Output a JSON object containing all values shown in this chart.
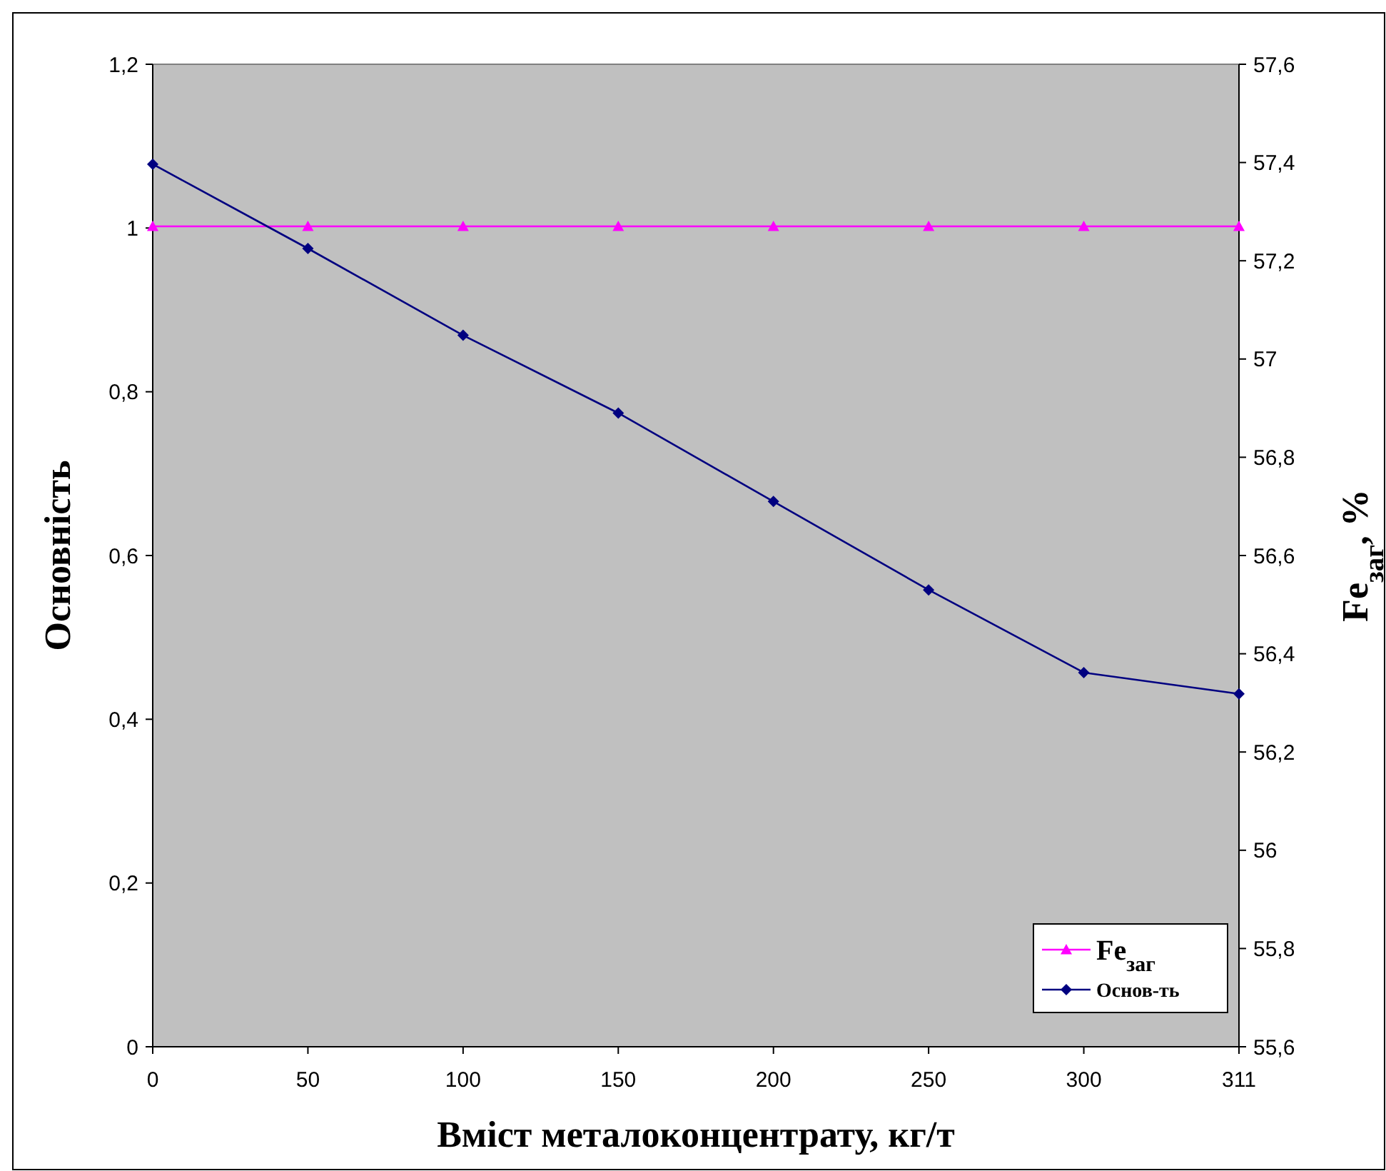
{
  "chart_data": {
    "type": "line",
    "xlabel": "Вміст металоконцентрату, кг/т",
    "ylabel": "Основність",
    "y2label": "Fe$_{заг}$, %",
    "categories": [
      "0",
      "50",
      "100",
      "150",
      "200",
      "250",
      "300",
      "311"
    ],
    "series": [
      {
        "name": "Fe$_{заг}$",
        "color": "#ff00ff",
        "axis": "y2",
        "marker": "triangle",
        "values": [
          57.27,
          57.27,
          57.27,
          57.27,
          57.27,
          57.27,
          57.27,
          57.27
        ]
      },
      {
        "name": "Основ-ть",
        "color": "#000080",
        "marker": "diamond",
        "values": [
          1.078,
          0.975,
          0.869,
          0.774,
          0.666,
          0.558,
          0.457,
          0.431
        ]
      }
    ],
    "ylim": [
      0,
      1.2
    ],
    "yticks": [
      0,
      {
        "value": 0.2,
        "label": "0,2"
      },
      {
        "value": 0.4,
        "label": "0,4"
      },
      {
        "value": 0.6,
        "label": "0,6"
      },
      {
        "value": 0.8,
        "label": "0,8"
      },
      1,
      {
        "value": 1.2,
        "label": "1,2"
      }
    ],
    "y2lim": [
      55.6,
      57.6
    ],
    "y2ticks": [
      {
        "value": 55.6,
        "label": "55,6"
      },
      {
        "value": 55.8,
        "label": "55,8"
      },
      56,
      {
        "value": 56.2,
        "label": "56,2"
      },
      {
        "value": 56.4,
        "label": "56,4"
      },
      {
        "value": 56.6,
        "label": "56,6"
      },
      {
        "value": 56.8,
        "label": "56,8"
      },
      57,
      {
        "value": 57.2,
        "label": "57,2"
      },
      {
        "value": 57.4,
        "label": "57,4"
      },
      {
        "value": 57.6,
        "label": "57,6"
      }
    ],
    "grid": false,
    "legend": "bottom right",
    "line_style": "solid"
  }
}
